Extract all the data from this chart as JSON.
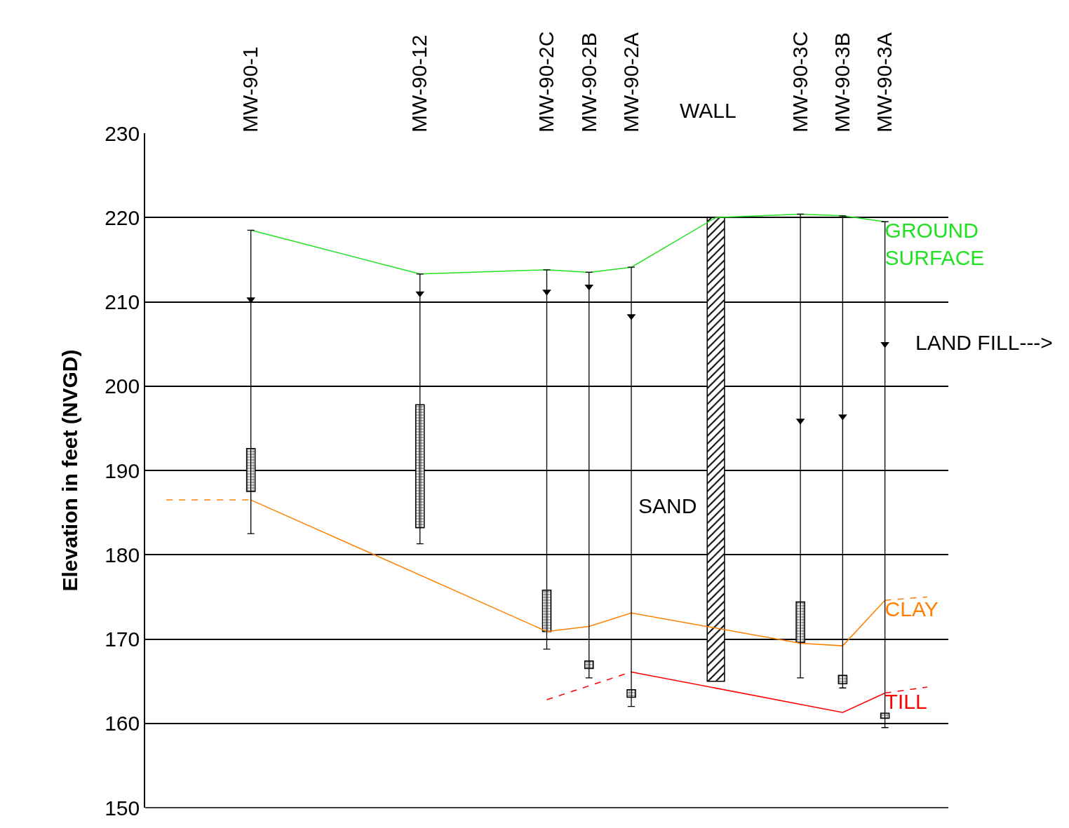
{
  "chart_data": {
    "type": "line",
    "ylabel": "Elevation in feet (NVGD)",
    "categories": [
      null,
      null,
      "MW-90-1",
      null,
      null,
      null,
      "MW-90-12",
      null,
      null,
      "MW-90-2C",
      "MW-90-2B",
      "MW-90-2A",
      null,
      null,
      null,
      "MW-90-3C",
      "MW-90-3B",
      "MW-90-3A",
      null
    ],
    "ylim": [
      150,
      230
    ],
    "yticks": [
      150,
      160,
      170,
      180,
      190,
      200,
      210,
      220,
      230
    ],
    "grid": "y",
    "series": [
      {
        "type": "bar",
        "color": "#000000",
        "base": [
          null,
          null,
          187.5,
          null,
          null,
          null,
          183.2,
          null,
          null,
          170.9,
          166.5,
          163.1,
          null,
          null,
          null,
          169.6,
          164.7,
          160.6,
          null
        ],
        "values": [
          null,
          null,
          5.1,
          null,
          null,
          null,
          14.6,
          null,
          null,
          4.9,
          0.9,
          0.9,
          null,
          null,
          null,
          4.8,
          1.0,
          0.6,
          null
        ]
      },
      {
        "type": "bar",
        "color": "#000000",
        "base": [
          null,
          null,
          null,
          null,
          null,
          null,
          null,
          null,
          null,
          null,
          null,
          null,
          null,
          165.0,
          null,
          null,
          null,
          null,
          null
        ],
        "values": [
          null,
          null,
          null,
          null,
          null,
          null,
          null,
          null,
          null,
          null,
          null,
          null,
          null,
          55.0,
          null,
          null,
          null,
          null,
          null
        ]
      },
      {
        "name": "GROUND SURFACE",
        "color": "#22e022",
        "line_style": "solid",
        "values": [
          null,
          null,
          218.5,
          null,
          null,
          null,
          213.3,
          null,
          null,
          213.8,
          213.5,
          214.1,
          null,
          220.0,
          null,
          220.4,
          220.2,
          219.5,
          null
        ]
      },
      {
        "color": "#ff8000",
        "line_style": "dashed",
        "values": [
          186.5,
          null,
          186.5,
          null,
          null,
          null,
          null,
          null,
          null,
          null,
          null,
          null,
          null,
          null,
          null,
          null,
          null,
          null,
          null
        ]
      },
      {
        "name": "CLAY",
        "color": "#ff8000",
        "line_style": "solid",
        "values": [
          null,
          null,
          186.5,
          null,
          null,
          null,
          null,
          null,
          null,
          170.9,
          171.5,
          173.1,
          null,
          null,
          null,
          169.5,
          169.2,
          174.6,
          null
        ]
      },
      {
        "color": "#ff8000",
        "line_style": "dashed",
        "values": [
          null,
          null,
          null,
          null,
          null,
          null,
          null,
          null,
          null,
          null,
          null,
          null,
          null,
          null,
          null,
          null,
          null,
          174.6,
          175.0
        ]
      },
      {
        "color": "#ff0000",
        "line_style": "dashed",
        "values": [
          null,
          null,
          null,
          null,
          null,
          null,
          null,
          null,
          null,
          162.8,
          null,
          166.1,
          null,
          null,
          null,
          null,
          null,
          null,
          null
        ]
      },
      {
        "name": "TILL",
        "color": "#ff0000",
        "line_style": "solid",
        "values": [
          null,
          null,
          null,
          null,
          null,
          null,
          null,
          null,
          null,
          null,
          null,
          166.1,
          null,
          null,
          null,
          null,
          161.3,
          163.6,
          null
        ]
      },
      {
        "color": "#ff0000",
        "line_style": "dashed",
        "values": [
          null,
          null,
          null,
          null,
          null,
          null,
          null,
          null,
          null,
          null,
          null,
          null,
          null,
          null,
          null,
          null,
          null,
          163.6,
          164.3
        ]
      },
      {
        "type": "scatter",
        "color": "#000000",
        "marker": "triangle",
        "values": [
          null,
          null,
          210.3,
          null,
          null,
          null,
          211.0,
          null,
          null,
          211.2,
          211.8,
          208.3,
          null,
          null,
          null,
          195.9,
          196.4,
          205.0,
          null
        ],
        "errors": [
          null,
          null,
          [
            182.5,
            218.5
          ],
          null,
          null,
          null,
          [
            181.3,
            213.3
          ],
          null,
          null,
          [
            168.8,
            213.8
          ],
          [
            165.4,
            213.5
          ],
          [
            162.0,
            214.1
          ],
          null,
          null,
          null,
          [
            165.4,
            220.4
          ],
          [
            164.2,
            220.2
          ],
          [
            159.5,
            219.5
          ],
          null
        ]
      }
    ],
    "annotations": [
      "SAND",
      "LAND FILL--->",
      "WALL"
    ]
  }
}
